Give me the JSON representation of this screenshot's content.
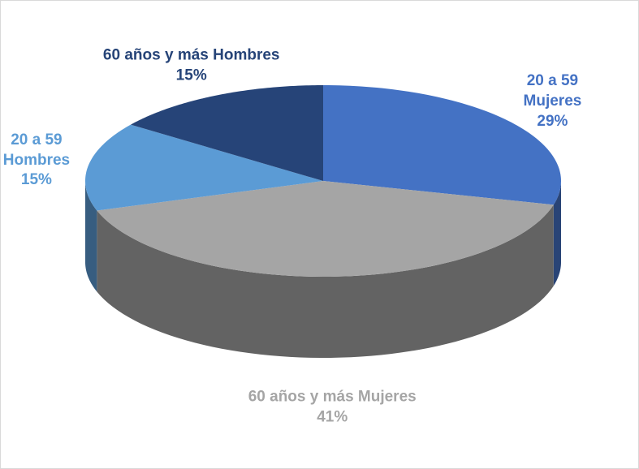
{
  "chart_data": {
    "type": "pie",
    "categories": [
      "20 a 59 Mujeres",
      "60 años y más Mujeres",
      "20 a 59 Hombres",
      "60 años y más Hombres"
    ],
    "values": [
      29,
      41,
      15,
      15
    ],
    "value_labels": [
      "29%",
      "41%",
      "15%",
      "15%"
    ],
    "colors": [
      "#4472c4",
      "#a5a5a5",
      "#5b9bd5",
      "#264478"
    ]
  }
}
